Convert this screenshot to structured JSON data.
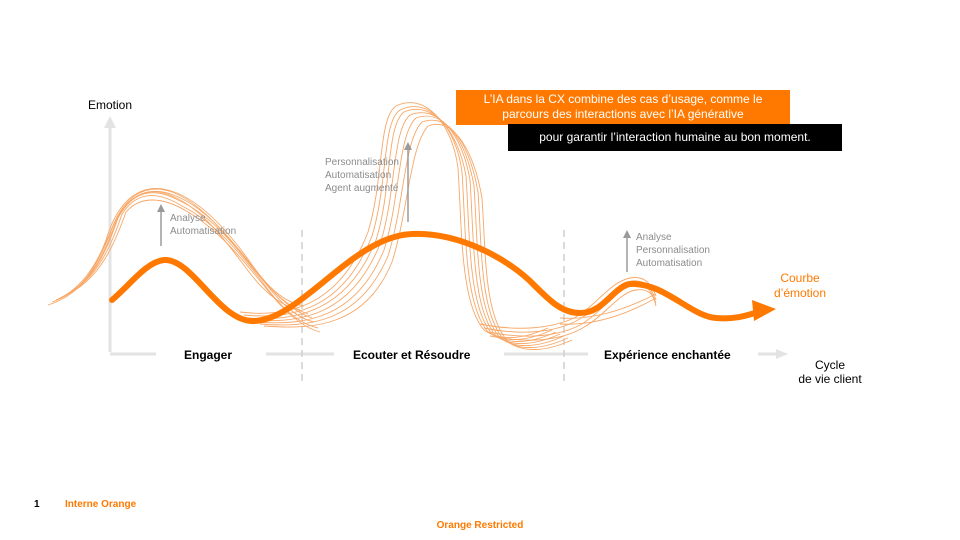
{
  "axes": {
    "y_label": "Emotion",
    "x_label_line1": "Cycle",
    "x_label_line2": "de vie client"
  },
  "phases": [
    "Engager",
    "Ecouter et Résoudre",
    "Expérience enchantée"
  ],
  "annotations": [
    {
      "lines": [
        "Analyse",
        "Automatisation"
      ]
    },
    {
      "lines": [
        "Personnalisation",
        "Automatisation",
        "Agent augmenté"
      ]
    },
    {
      "lines": [
        "Analyse",
        "Personnalisation",
        "Automatisation"
      ]
    }
  ],
  "curve_label": {
    "line1": "Courbe",
    "line2": "d’émotion"
  },
  "callouts": {
    "orange_line1": "L’IA dans la CX combine des cas d’usage, comme le",
    "orange_line2": "parcours des interactions avec l’IA générative",
    "black": "pour garantir l’interaction humaine au bon moment."
  },
  "footer": {
    "page_number": "1",
    "tag": "Interne Orange",
    "classification": "Orange Restricted"
  },
  "colors": {
    "brand_orange": "#ff7900",
    "thin_curve": "#f7a767",
    "axis_gray": "#e3e3e3",
    "arrow_gray": "#9a9a9a",
    "text_gray": "#8c8c8c"
  }
}
